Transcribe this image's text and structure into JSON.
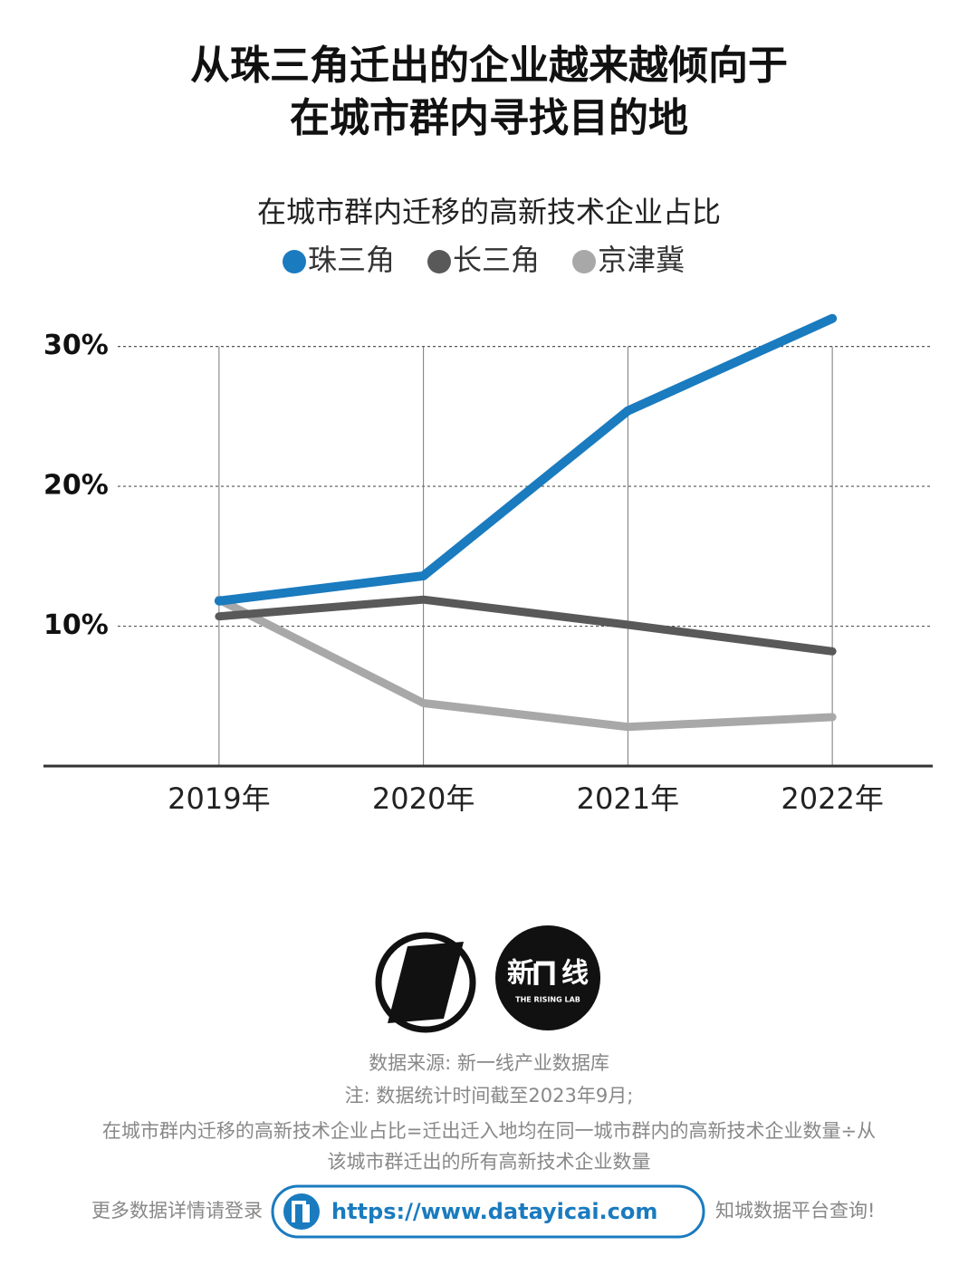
{
  "header": {
    "title_lines": [
      "从珠三角迁出的企业越来越倾向于",
      "在城市群内寻找目的地"
    ]
  },
  "chart_data": {
    "type": "line",
    "title": "在城市群内迁移的高新技术企业占比",
    "categories": [
      "2019年",
      "2020年",
      "2021年",
      "2022年"
    ],
    "series": [
      {
        "name": "珠三角",
        "color": "#1a7bbf",
        "values": [
          11.8,
          13.6,
          25.4,
          32.0
        ]
      },
      {
        "name": "长三角",
        "color": "#595959",
        "values": [
          10.7,
          11.9,
          10.1,
          8.2
        ]
      },
      {
        "name": "京津冀",
        "color": "#a8a8a8",
        "values": [
          11.9,
          4.5,
          2.8,
          3.5
        ]
      }
    ],
    "ylim": [
      0,
      32.5
    ],
    "yticks": [
      {
        "value": 10,
        "label": "10%"
      },
      {
        "value": 20,
        "label": "20%"
      },
      {
        "value": 30,
        "label": "30%"
      }
    ],
    "grid": true,
    "legend": "top"
  },
  "brand": {
    "name_left": "新",
    "name_right": "线",
    "tagline": "THE RISING LAB"
  },
  "footer": {
    "source": "数据来源: 新一线产业数据库",
    "notes": [
      "注: 数据统计时间截至2023年9月;",
      "在城市群内迁移的高新技术企业占比=迁出迁入地均在同一城市群内的高新技术企业数量÷从",
      "该城市群迁出的所有高新技术企业数量"
    ],
    "cta_before": "更多数据详情请登录",
    "url": "https://www.datayicai.com",
    "cta_after": "知城数据平台查询!"
  }
}
